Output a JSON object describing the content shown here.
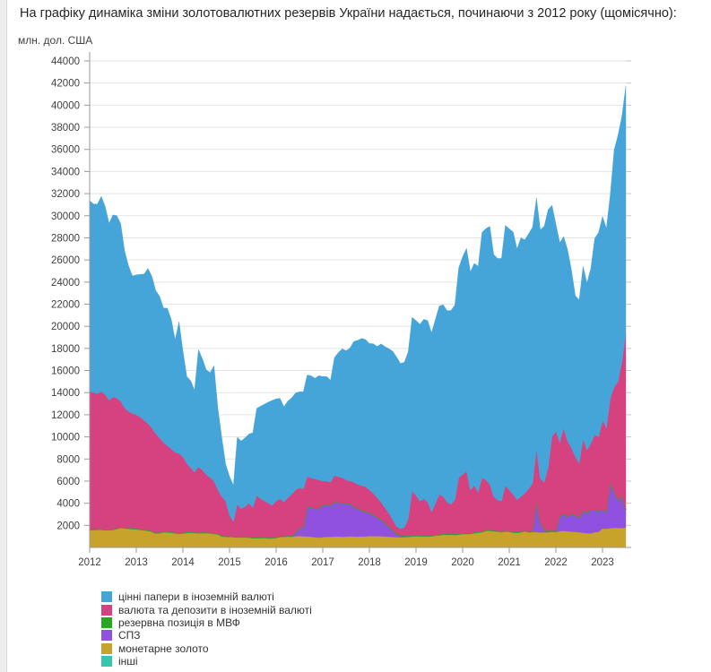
{
  "page": {
    "title": "На графіку динаміка зміни золотовалютних резервів України надається, починаючи з 2012 року (щомісячно):"
  },
  "chart_data": {
    "type": "area",
    "stacked": true,
    "title": "",
    "ylabel": "млн. дол. США",
    "xlabel": "",
    "grid": true,
    "legend_position": "bottom-left",
    "ylim": [
      0,
      44000
    ],
    "y_ticks": [
      2000,
      4000,
      6000,
      8000,
      10000,
      12000,
      14000,
      16000,
      18000,
      20000,
      22000,
      24000,
      26000,
      28000,
      30000,
      32000,
      34000,
      36000,
      38000,
      40000,
      42000,
      44000
    ],
    "x_period": {
      "start": "2012-01",
      "end": "2023-07",
      "step": "month",
      "count": 139
    },
    "x_tick_labels": [
      "2012",
      "2013",
      "2014",
      "2015",
      "2016",
      "2017",
      "2018",
      "2019",
      "2020",
      "2021",
      "2022",
      "2023"
    ],
    "x_tick_indices": [
      0,
      12,
      24,
      36,
      48,
      60,
      72,
      84,
      96,
      108,
      120,
      132
    ],
    "stack_order_bottom_to_top": [
      5,
      4,
      3,
      2,
      1,
      0
    ],
    "series": [
      {
        "name": "цінні папери в іноземній валюті",
        "color": "#45a5d8",
        "values": [
          17262,
          17053,
          17141,
          17643,
          17012,
          16017,
          16464,
          16497,
          16054,
          14216,
          13165,
          12446,
          12652,
          12895,
          13226,
          14040,
          13737,
          12944,
          12818,
          12152,
          12439,
          11732,
          10192,
          11916,
          9606,
          7862,
          7879,
          7426,
          10588,
          10083,
          9468,
          9518,
          10428,
          7386,
          5366,
          3333,
          3520,
          3275,
          6070,
          6126,
          6218,
          6264,
          6774,
          7878,
          8386,
          8762,
          9149,
          9500,
          9242,
          9085,
          8622,
          8742,
          8737,
          8776,
          8680,
          8789,
          9195,
          9215,
          9105,
          9439,
          9446,
          9463,
          9221,
          10671,
          11220,
          11665,
          11692,
          12034,
          12739,
          13032,
          13308,
          13308,
          13240,
          13526,
          13685,
          14307,
          14569,
          14876,
          15248,
          15331,
          14942,
          14943,
          15106,
          15720,
          15817,
          15991,
          16230,
          16422,
          16214,
          16642,
          17040,
          17350,
          17314,
          17534,
          17633,
          19002,
          19692,
          20145,
          19725,
          20094,
          20424,
          22212,
          22743,
          23338,
          21901,
          21835,
          21937,
          23533,
          23620,
          23735,
          22706,
          23400,
          22921,
          23079,
          23156,
          22710,
          22535,
          23155,
          23351,
          20941,
          18755,
          18065,
          17313,
          17345,
          16111,
          14576,
          14787,
          15635,
          15131,
          15840,
          17761,
          18495,
          18418,
          18061,
          18405,
          21444,
          22297,
          22212,
          22420
        ]
      },
      {
        "name": "валюта та депозити в іноземній валюті",
        "color": "#d6427f",
        "values": [
          12490,
          12380,
          12250,
          12460,
          12200,
          11690,
          11970,
          11780,
          11380,
          10840,
          10560,
          10400,
          10300,
          10160,
          9890,
          9640,
          9320,
          8980,
          8550,
          8050,
          7790,
          7510,
          7260,
          7210,
          6870,
          6220,
          5790,
          5430,
          5960,
          5640,
          5230,
          4960,
          4720,
          3960,
          3550,
          3190,
          1875,
          1355,
          2935,
          2525,
          2735,
          3045,
          2705,
          3785,
          3495,
          3275,
          3125,
          2915,
          3280,
          3390,
          3090,
          3450,
          3770,
          3860,
          3640,
          3460,
          2670,
          2650,
          2650,
          2580,
          2140,
          2130,
          2060,
          2390,
          2300,
          2260,
          2090,
          2050,
          2180,
          2190,
          2230,
          2270,
          2040,
          1950,
          1750,
          1560,
          1370,
          1200,
          920,
          640,
          600,
          730,
          1550,
          4020,
          3620,
          3120,
          3340,
          3050,
          2130,
          2850,
          3640,
          3360,
          2900,
          2670,
          3110,
          5070,
          5320,
          5620,
          3910,
          4240,
          3600,
          4870,
          4520,
          4130,
          3080,
          2790,
          2760,
          4090,
          3720,
          3400,
          2920,
          3170,
          3370,
          3870,
          4340,
          4750,
          4020,
          4290,
          5700,
          8480,
          8980,
          6690,
          7770,
          6800,
          5940,
          5260,
          4900,
          6430,
          5670,
          5990,
          6800,
          6660,
          8060,
          7580,
          7620,
          9490,
          10700,
          12220,
          15880
        ]
      },
      {
        "name": "резервна позиція в МВФ",
        "color": "#26a826",
        "values_constant": 30
      },
      {
        "name": "СПЗ",
        "color": "#9050e0",
        "values": [
          10,
          10,
          10,
          10,
          10,
          10,
          10,
          10,
          10,
          10,
          10,
          10,
          10,
          10,
          10,
          10,
          10,
          10,
          10,
          10,
          10,
          10,
          10,
          10,
          20,
          20,
          20,
          20,
          20,
          20,
          20,
          20,
          20,
          20,
          20,
          20,
          25,
          25,
          25,
          25,
          25,
          25,
          25,
          25,
          25,
          25,
          25,
          25,
          30,
          30,
          30,
          30,
          30,
          300,
          700,
          800,
          2700,
          2650,
          2600,
          2600,
          2900,
          2880,
          2850,
          3100,
          3080,
          3050,
          3000,
          2900,
          2700,
          2500,
          2350,
          2200,
          2100,
          1900,
          1700,
          1500,
          1200,
          900,
          600,
          300,
          150,
          100,
          80,
          60,
          30,
          30,
          30,
          30,
          30,
          30,
          30,
          30,
          30,
          30,
          30,
          30,
          30,
          30,
          30,
          30,
          30,
          30,
          30,
          30,
          30,
          30,
          30,
          30,
          30,
          30,
          30,
          30,
          30,
          30,
          30,
          2720,
          800,
          200,
          100,
          80,
          100,
          1300,
          1500,
          1300,
          1600,
          1500,
          1300,
          2000,
          1800,
          2100,
          2000,
          1900,
          1700,
          1500,
          4100,
          3200,
          2500,
          2800,
          1600
        ]
      },
      {
        "name": "монетарне золото",
        "color": "#c7a32b",
        "values": [
          1560,
          1580,
          1610,
          1600,
          1560,
          1570,
          1590,
          1680,
          1780,
          1720,
          1700,
          1660,
          1650,
          1590,
          1560,
          1510,
          1430,
          1270,
          1300,
          1400,
          1360,
          1340,
          1290,
          1240,
          1270,
          1320,
          1350,
          1310,
          1280,
          1300,
          1310,
          1280,
          1220,
          1180,
          990,
          950,
          960,
          930,
          900,
          910,
          900,
          890,
          830,
          850,
          840,
          860,
          810,
          820,
          850,
          940,
          940,
          980,
          960,
          1000,
          1020,
          1000,
          990,
          960,
          910,
          880,
          920,
          950,
          950,
          970,
          980,
          950,
          970,
          1010,
          980,
          970,
          980,
          990,
          1020,
          1010,
          1010,
          1000,
          990,
          960,
          940,
          920,
          910,
          930,
          930,
          980,
          1010,
          1010,
          990,
          980,
          1000,
          1080,
          1090,
          1170,
          1130,
          1160,
          1120,
          1160,
          1210,
          1210,
          1220,
          1290,
          1330,
          1360,
          1510,
          1500,
          1450,
          1440,
          1370,
          1440,
          1410,
          1330,
          1310,
          1360,
          1460,
          1360,
          1390,
          1390,
          1340,
          1370,
          1360,
          1400,
          1380,
          1470,
          1490,
          1460,
          1420,
          1400,
          1360,
          1330,
          1290,
          1270,
          1360,
          1400,
          1700,
          1680,
          1740,
          1770,
          1760,
          1740,
          1780
        ]
      },
      {
        "name": "інші",
        "color": "#35c6ae",
        "values_constant": 10
      }
    ]
  }
}
